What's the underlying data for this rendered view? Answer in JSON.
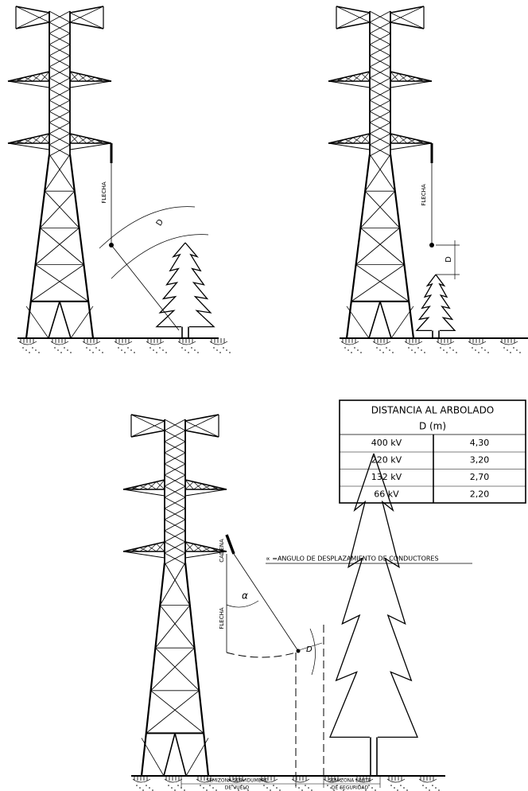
{
  "top_left": {
    "sag": "FLECHA",
    "distance": "D"
  },
  "top_right": {
    "sag": "FLECHA",
    "distance": "D"
  },
  "table": {
    "title": "DISTANCIA AL ARBOLADO",
    "subtitle": "D (m)",
    "rows": [
      [
        "400 kV",
        "4,30"
      ],
      [
        "220 kV",
        "3,20"
      ],
      [
        "132 kV",
        "2,70"
      ],
      [
        "66 kV",
        "2,20"
      ]
    ]
  },
  "bottom": {
    "note": "∝ =ANGULO DE DESPLAZAMIENTO DE CONDUCTORES",
    "chain": "CADENA",
    "sag": "FLECHA",
    "angle": "α",
    "distance": "D",
    "zones": [
      [
        "SEMIZONA SERVIDUMBRE",
        "DE VUELO"
      ],
      [
        "SEMIZONA LIMITE",
        "DE SEGURIDAD"
      ]
    ]
  }
}
